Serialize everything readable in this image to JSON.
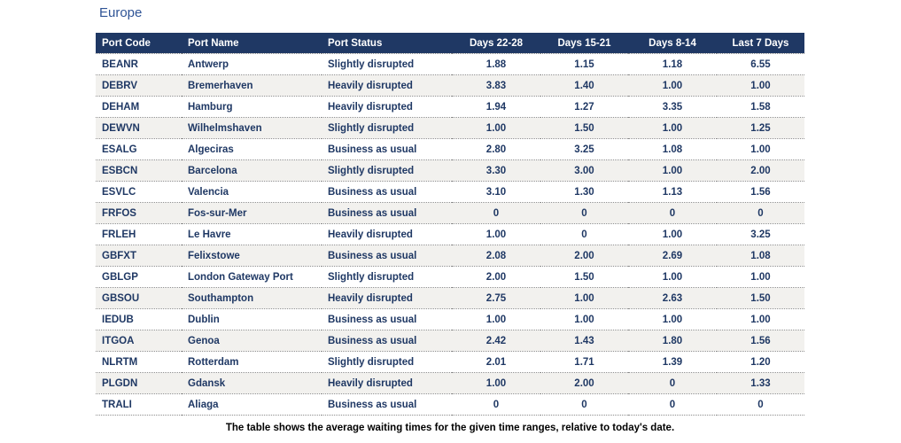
{
  "title": "Europe",
  "caption": "The table shows the average waiting times for the given time ranges, relative to today's date.",
  "colors": {
    "header_bg": "#1F3864",
    "header_text": "#FFFFFF",
    "row_text": "#1F3864",
    "stripe_bg": "#F2F1EE",
    "title_text": "#2F5496",
    "caption_text": "#000000",
    "row_divider": "#8C8C8C"
  },
  "table": {
    "columns": [
      {
        "key": "port_code",
        "label": "Port Code",
        "align": "left"
      },
      {
        "key": "port_name",
        "label": "Port Name",
        "align": "left"
      },
      {
        "key": "port_status",
        "label": "Port Status",
        "align": "left"
      },
      {
        "key": "days_22_28",
        "label": "Days 22-28",
        "align": "center"
      },
      {
        "key": "days_15_21",
        "label": "Days 15-21",
        "align": "center"
      },
      {
        "key": "days_8_14",
        "label": "Days 8-14",
        "align": "center"
      },
      {
        "key": "last_7_days",
        "label": "Last 7 Days",
        "align": "center"
      }
    ],
    "rows": [
      [
        "BEANR",
        "Antwerp",
        "Slightly disrupted",
        "1.88",
        "1.15",
        "1.18",
        "6.55"
      ],
      [
        "DEBRV",
        "Bremerhaven",
        "Heavily disrupted",
        "3.83",
        "1.40",
        "1.00",
        "1.00"
      ],
      [
        "DEHAM",
        "Hamburg",
        "Heavily disrupted",
        "1.94",
        "1.27",
        "3.35",
        "1.58"
      ],
      [
        "DEWVN",
        "Wilhelmshaven",
        "Slightly disrupted",
        "1.00",
        "1.50",
        "1.00",
        "1.25"
      ],
      [
        "ESALG",
        "Algeciras",
        "Business as usual",
        "2.80",
        "3.25",
        "1.08",
        "1.00"
      ],
      [
        "ESBCN",
        "Barcelona",
        "Slightly disrupted",
        "3.30",
        "3.00",
        "1.00",
        "2.00"
      ],
      [
        "ESVLC",
        "Valencia",
        "Business as usual",
        "3.10",
        "1.30",
        "1.13",
        "1.56"
      ],
      [
        "FRFOS",
        "Fos-sur-Mer",
        "Business as usual",
        "0",
        "0",
        "0",
        "0"
      ],
      [
        "FRLEH",
        "Le Havre",
        "Heavily disrupted",
        "1.00",
        "0",
        "1.00",
        "3.25"
      ],
      [
        "GBFXT",
        "Felixstowe",
        "Business as usual",
        "2.08",
        "2.00",
        "2.69",
        "1.08"
      ],
      [
        "GBLGP",
        "London Gateway Port",
        "Slightly disrupted",
        "2.00",
        "1.50",
        "1.00",
        "1.00"
      ],
      [
        "GBSOU",
        "Southampton",
        "Heavily disrupted",
        "2.75",
        "1.00",
        "2.63",
        "1.50"
      ],
      [
        "IEDUB",
        "Dublin",
        "Business as usual",
        "1.00",
        "1.00",
        "1.00",
        "1.00"
      ],
      [
        "ITGOA",
        "Genoa",
        "Business as usual",
        "2.42",
        "1.43",
        "1.80",
        "1.56"
      ],
      [
        "NLRTM",
        "Rotterdam",
        "Slightly disrupted",
        "2.01",
        "1.71",
        "1.39",
        "1.20"
      ],
      [
        "PLGDN",
        "Gdansk",
        "Heavily disrupted",
        "1.00",
        "2.00",
        "0",
        "1.33"
      ],
      [
        "TRALI",
        "Aliaga",
        "Business as usual",
        "0",
        "0",
        "0",
        "0"
      ]
    ]
  }
}
